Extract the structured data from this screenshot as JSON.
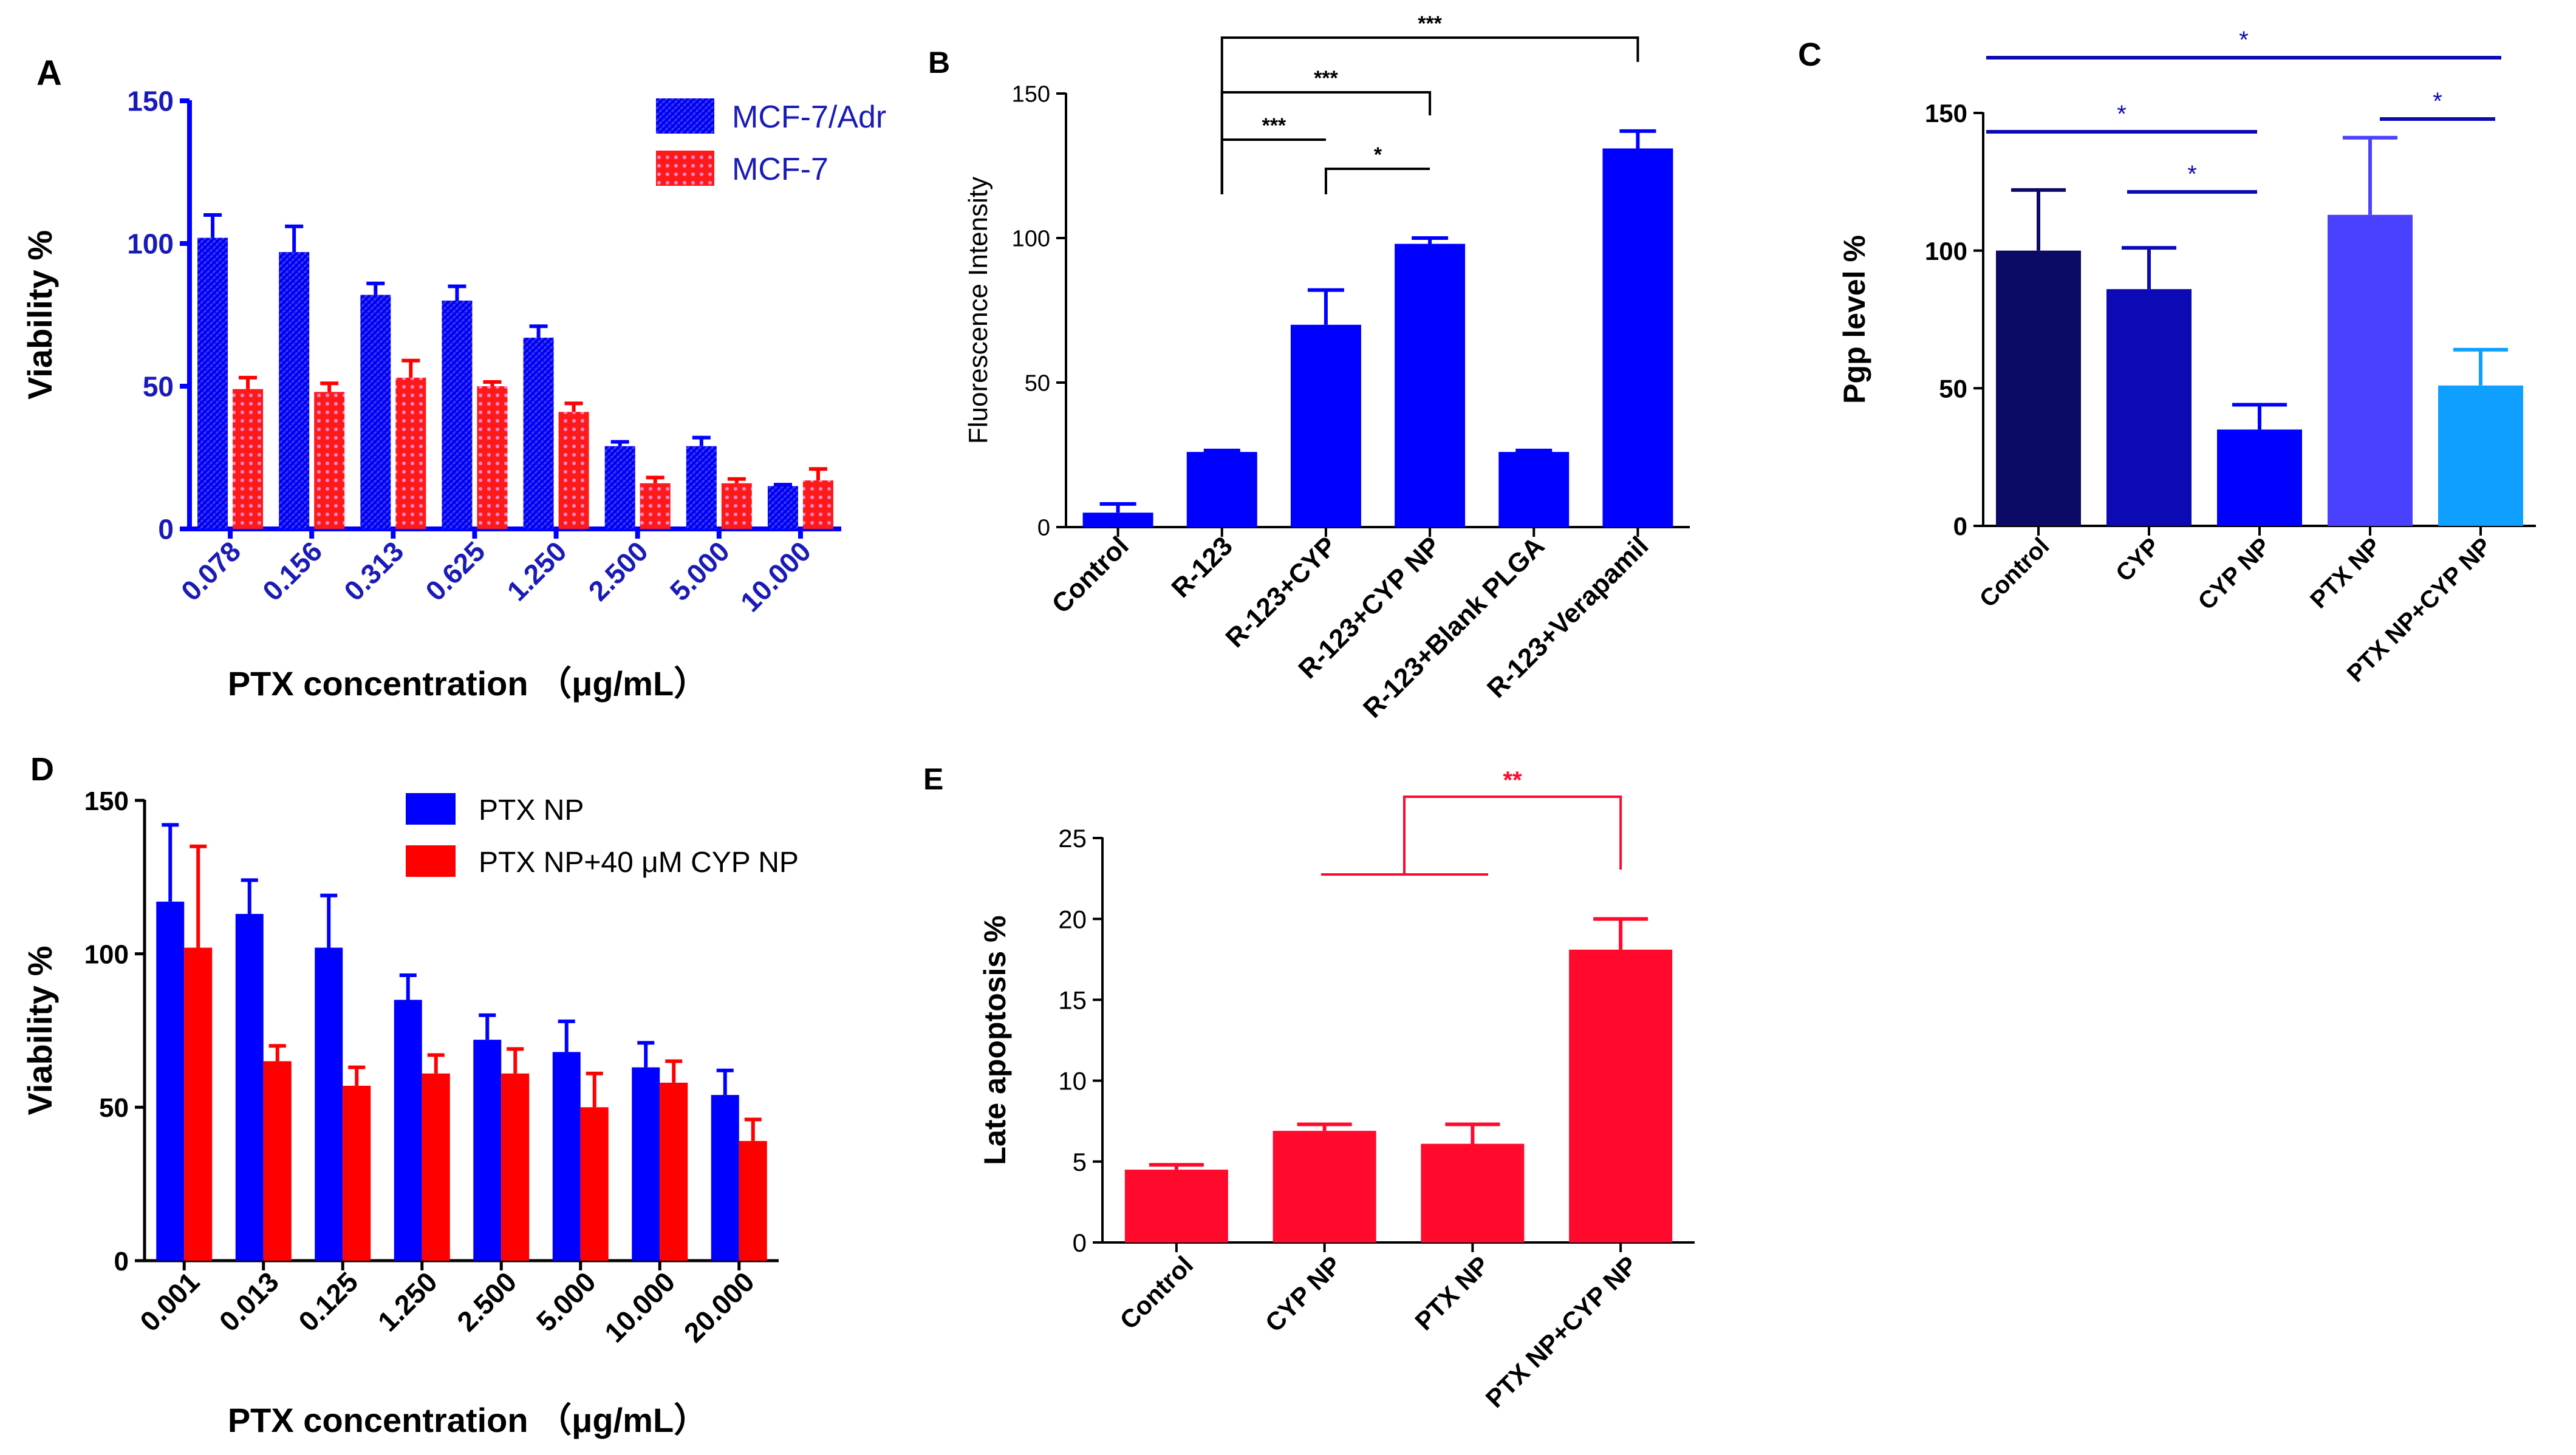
{
  "colors": {
    "blue": "#0000ff",
    "red": "#ff0000",
    "crimson": "#ff0a2d",
    "navy": "#0b0a66",
    "darkblue": "#0b0ab5",
    "medblue": "#0000ff",
    "lavender": "#4a40ff",
    "lightblue": "#0fa0ff",
    "black": "#000000",
    "axis_blue": "#1a1ab8"
  },
  "chart_data": [
    {
      "panel": "A",
      "type": "bar",
      "xlabel": "PTX concentration （μg/mL）",
      "ylabel": "Viability %",
      "ylim": [
        0,
        150
      ],
      "yticks": [
        "0",
        "50",
        "100",
        "150"
      ],
      "categories": [
        "0.078",
        "0.156",
        "0.313",
        "0.625",
        "1.250",
        "2.500",
        "5.000",
        "10.000"
      ],
      "series": [
        {
          "name": "MCF-7/Adr",
          "values": [
            102,
            97,
            82,
            80,
            67,
            29,
            29,
            15
          ],
          "errors": [
            8,
            9,
            4,
            5,
            4,
            1.5,
            3,
            0.5
          ]
        },
        {
          "name": "MCF-7",
          "values": [
            49,
            48,
            53,
            50,
            41,
            16,
            16,
            17
          ],
          "errors": [
            4,
            3,
            6,
            1.5,
            3,
            2,
            1.5,
            4
          ]
        }
      ],
      "legend": "top-right"
    },
    {
      "panel": "B",
      "type": "bar",
      "xlabel": "",
      "ylabel": "Fluorescence Intensity",
      "ylim": [
        0,
        150
      ],
      "yticks": [
        "0",
        "50",
        "100",
        "150"
      ],
      "categories": [
        "Control",
        "R-123",
        "R-123+CYP",
        "R-123+CYP NP",
        "R-123+Blank PLGA",
        "R-123+Verapamil"
      ],
      "values": [
        5,
        26,
        70,
        98,
        26,
        131
      ],
      "errors": [
        3,
        0.5,
        12,
        2,
        0.5,
        6
      ],
      "significance": [
        {
          "from": 1,
          "to": 2,
          "label": "***"
        },
        {
          "from": 2,
          "to": 3,
          "label": "*"
        },
        {
          "from": 1,
          "to": 3,
          "label": "***"
        },
        {
          "from": 1,
          "to": 5,
          "label": "***"
        }
      ]
    },
    {
      "panel": "C",
      "type": "bar",
      "xlabel": "",
      "ylabel": "Pgp level %",
      "ylim": [
        0,
        150
      ],
      "yticks": [
        "0",
        "50",
        "100",
        "150"
      ],
      "categories": [
        "Control",
        "CYP",
        "CYP NP",
        "PTX NP",
        "PTX NP+CYP NP"
      ],
      "values": [
        100,
        86,
        35,
        113,
        51
      ],
      "errors": [
        22,
        15,
        9,
        28,
        13
      ],
      "significance": [
        {
          "from": 0,
          "to": 4,
          "label": "*"
        },
        {
          "from": 0,
          "to": 2,
          "label": "*"
        },
        {
          "from": 1,
          "to": 2,
          "label": "*"
        },
        {
          "from": 3,
          "to": 4,
          "label": "*"
        }
      ]
    },
    {
      "panel": "D",
      "type": "bar",
      "xlabel": "PTX concentration （μg/mL）",
      "ylabel": "Viability %",
      "ylim": [
        0,
        150
      ],
      "yticks": [
        "0",
        "50",
        "100",
        "150"
      ],
      "categories": [
        "0.001",
        "0.013",
        "0.125",
        "1.250",
        "2.500",
        "5.000",
        "10.000",
        "20.000"
      ],
      "series": [
        {
          "name": "PTX NP",
          "values": [
            117,
            113,
            102,
            85,
            72,
            68,
            63,
            54
          ],
          "errors": [
            25,
            11,
            17,
            8,
            8,
            10,
            8,
            8
          ]
        },
        {
          "name": "PTX NP+40 μM CYP NP",
          "values": [
            102,
            65,
            57,
            61,
            61,
            50,
            58,
            39
          ],
          "errors": [
            33,
            5,
            6,
            6,
            8,
            11,
            7,
            7
          ]
        }
      ],
      "legend": "top-right"
    },
    {
      "panel": "E",
      "type": "bar",
      "xlabel": "",
      "ylabel": "Late apoptosis %",
      "ylim": [
        0,
        25
      ],
      "yticks": [
        "0",
        "5",
        "10",
        "15",
        "20",
        "25"
      ],
      "categories": [
        "Control",
        "CYP NP",
        "PTX  NP",
        "PTX NP+CYP NP"
      ],
      "values": [
        4.5,
        6.9,
        6.1,
        18.1
      ],
      "errors": [
        0.3,
        0.4,
        1.2,
        1.9
      ],
      "significance": [
        {
          "from_group": [
            1,
            2
          ],
          "to": 3,
          "label": "**"
        }
      ]
    }
  ]
}
